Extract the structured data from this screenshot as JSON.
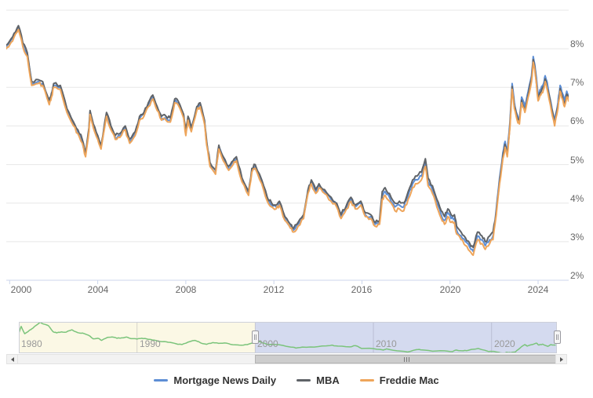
{
  "page": {
    "background": "#ffffff"
  },
  "chart": {
    "y_axis": {
      "labels": [
        "2%",
        "3%",
        "4%",
        "5%",
        "6%",
        "7%",
        "8%"
      ],
      "values": [
        2,
        3,
        4,
        5,
        6,
        7,
        8
      ],
      "top_grid_value": 9
    },
    "x_axis": {
      "labels": [
        "2000",
        "2004",
        "2008",
        "2012",
        "2016",
        "2020",
        "2024"
      ],
      "years": [
        2000,
        2004,
        2008,
        2012,
        2016,
        2020,
        2024
      ]
    },
    "colors": {
      "grid": "#e7e7e7",
      "axis_line": "#ccd6eb",
      "axis_label": "#666666",
      "nav_label": "#999999",
      "nav_mask_unselected": "#fbf8e5",
      "nav_mask_selected": "#d4daef",
      "nav_border": "#cdd0da",
      "scrollbar_track": "#f2f2f2",
      "scrollbar_thumb": "#cdcdcd",
      "legend_text": "#333333"
    }
  },
  "chart_data": {
    "type": "line",
    "title": "",
    "xlabel": "",
    "ylabel": "",
    "ylabel_suffix": "%",
    "xlim": [
      1999.85,
      2025.5
    ],
    "ylim": [
      2,
      9
    ],
    "grid": "horizontal",
    "legend_position": "bottom",
    "x": [
      1999.85,
      2000.0,
      2000.2,
      2000.4,
      2000.6,
      2000.8,
      2001.0,
      2001.3,
      2001.5,
      2001.8,
      2001.9,
      2002.0,
      2002.3,
      2002.6,
      2002.9,
      2003.1,
      2003.3,
      2003.45,
      2003.6,
      2003.65,
      2003.8,
      2004.0,
      2004.15,
      2004.4,
      2004.6,
      2004.8,
      2005.0,
      2005.25,
      2005.45,
      2005.7,
      2005.9,
      2006.1,
      2006.3,
      2006.5,
      2006.7,
      2006.9,
      2007.1,
      2007.3,
      2007.5,
      2007.65,
      2007.9,
      2008.0,
      2008.1,
      2008.25,
      2008.5,
      2008.65,
      2008.85,
      2008.95,
      2009.1,
      2009.35,
      2009.5,
      2009.7,
      2009.95,
      2010.15,
      2010.3,
      2010.55,
      2010.85,
      2011.0,
      2011.15,
      2011.45,
      2011.7,
      2011.9,
      2012.1,
      2012.25,
      2012.5,
      2012.75,
      2012.9,
      2013.1,
      2013.35,
      2013.55,
      2013.7,
      2013.9,
      2014.05,
      2014.3,
      2014.6,
      2014.85,
      2015.05,
      2015.3,
      2015.5,
      2015.7,
      2015.95,
      2016.15,
      2016.4,
      2016.6,
      2016.8,
      2016.92,
      2017.05,
      2017.25,
      2017.5,
      2017.7,
      2017.9,
      2018.1,
      2018.3,
      2018.5,
      2018.7,
      2018.88,
      2019.0,
      2019.2,
      2019.4,
      2019.6,
      2019.75,
      2019.9,
      2020.05,
      2020.2,
      2020.3,
      2020.5,
      2020.7,
      2020.9,
      2021.05,
      2021.25,
      2021.45,
      2021.6,
      2021.8,
      2021.95,
      2022.1,
      2022.25,
      2022.4,
      2022.5,
      2022.6,
      2022.72,
      2022.82,
      2022.92,
      2023.05,
      2023.15,
      2023.25,
      2023.4,
      2023.55,
      2023.7,
      2023.78,
      2023.88,
      2024.0,
      2024.12,
      2024.25,
      2024.32,
      2024.45,
      2024.6,
      2024.75,
      2024.9,
      2025.0,
      2025.1,
      2025.2,
      2025.3,
      2025.42
    ],
    "series": [
      {
        "name": "Mortgage News Daily",
        "color": "#5d8ed5",
        "values": [
          8.05,
          8.15,
          8.35,
          8.55,
          8.1,
          7.85,
          7.1,
          7.15,
          7.1,
          6.6,
          6.8,
          7.05,
          7.0,
          6.4,
          6.05,
          5.85,
          5.6,
          5.25,
          5.9,
          6.35,
          6.0,
          5.7,
          5.45,
          6.3,
          5.95,
          5.7,
          5.75,
          5.95,
          5.6,
          5.8,
          6.2,
          6.3,
          6.55,
          6.75,
          6.45,
          6.2,
          6.2,
          6.15,
          6.65,
          6.6,
          6.25,
          5.8,
          6.2,
          5.9,
          6.45,
          6.55,
          6.1,
          5.55,
          5.0,
          4.8,
          5.45,
          5.15,
          4.9,
          5.05,
          5.15,
          4.6,
          4.25,
          4.85,
          4.95,
          4.55,
          4.1,
          3.95,
          3.9,
          4.0,
          3.6,
          3.4,
          3.3,
          3.45,
          3.65,
          4.3,
          4.55,
          4.3,
          4.45,
          4.3,
          4.1,
          3.95,
          3.65,
          3.9,
          4.1,
          3.9,
          4.0,
          3.7,
          3.65,
          3.45,
          3.5,
          4.2,
          4.3,
          4.15,
          3.9,
          3.95,
          3.9,
          4.2,
          4.5,
          4.6,
          4.7,
          5.05,
          4.55,
          4.35,
          4.0,
          3.7,
          3.55,
          3.75,
          3.6,
          3.6,
          3.3,
          3.15,
          3.0,
          2.85,
          2.75,
          3.15,
          3.05,
          2.9,
          3.05,
          3.15,
          3.85,
          4.65,
          5.3,
          5.6,
          5.35,
          6.1,
          7.1,
          6.6,
          6.3,
          6.2,
          6.75,
          6.5,
          6.9,
          7.3,
          7.8,
          7.45,
          6.8,
          6.95,
          7.1,
          7.3,
          7.0,
          6.55,
          6.15,
          6.6,
          7.05,
          6.85,
          6.65,
          6.9,
          6.8
        ]
      },
      {
        "name": "MBA",
        "color": "#5f6368",
        "values": [
          8.1,
          8.2,
          8.4,
          8.6,
          8.15,
          7.9,
          7.15,
          7.2,
          7.15,
          6.65,
          6.85,
          7.1,
          7.05,
          6.45,
          6.1,
          5.9,
          5.65,
          5.3,
          5.95,
          6.4,
          6.05,
          5.75,
          5.5,
          6.35,
          6.0,
          5.75,
          5.8,
          6.0,
          5.65,
          5.85,
          6.25,
          6.35,
          6.6,
          6.8,
          6.5,
          6.25,
          6.25,
          6.2,
          6.7,
          6.65,
          6.3,
          5.85,
          6.25,
          5.95,
          6.5,
          6.6,
          6.15,
          5.6,
          5.05,
          4.85,
          5.5,
          5.2,
          4.95,
          5.1,
          5.2,
          4.65,
          4.3,
          4.9,
          5.0,
          4.6,
          4.15,
          4.0,
          3.95,
          4.05,
          3.65,
          3.45,
          3.35,
          3.5,
          3.7,
          4.35,
          4.6,
          4.35,
          4.5,
          4.35,
          4.15,
          4.0,
          3.7,
          3.95,
          4.15,
          3.95,
          4.05,
          3.75,
          3.7,
          3.5,
          3.55,
          4.3,
          4.4,
          4.25,
          4.0,
          4.05,
          4.0,
          4.3,
          4.6,
          4.7,
          4.8,
          5.15,
          4.65,
          4.45,
          4.1,
          3.8,
          3.65,
          3.85,
          3.7,
          3.7,
          3.4,
          3.25,
          3.1,
          2.95,
          2.85,
          3.25,
          3.15,
          3.0,
          3.15,
          3.25,
          3.77,
          4.57,
          5.22,
          5.52,
          5.27,
          6.02,
          7.02,
          6.52,
          6.22,
          6.12,
          6.67,
          6.42,
          6.82,
          7.22,
          7.72,
          7.37,
          6.72,
          6.87,
          7.02,
          7.22,
          6.92,
          6.47,
          6.07,
          6.52,
          6.97,
          6.77,
          6.57,
          6.82,
          6.72
        ]
      },
      {
        "name": "Freddie Mac",
        "color": "#eea55b",
        "values": [
          8.0,
          8.1,
          8.3,
          8.5,
          8.05,
          7.8,
          7.05,
          7.1,
          7.05,
          6.55,
          6.75,
          7.0,
          6.95,
          6.35,
          6.0,
          5.8,
          5.55,
          5.2,
          5.85,
          6.3,
          5.95,
          5.65,
          5.4,
          6.25,
          5.9,
          5.65,
          5.7,
          5.9,
          5.55,
          5.75,
          6.15,
          6.25,
          6.5,
          6.7,
          6.4,
          6.15,
          6.15,
          6.1,
          6.6,
          6.55,
          6.2,
          5.75,
          6.15,
          5.85,
          6.4,
          6.5,
          6.05,
          5.5,
          4.95,
          4.75,
          5.4,
          5.1,
          4.85,
          5.0,
          5.1,
          4.55,
          4.2,
          4.8,
          4.9,
          4.5,
          4.05,
          3.9,
          3.85,
          3.95,
          3.55,
          3.35,
          3.25,
          3.4,
          3.6,
          4.25,
          4.5,
          4.25,
          4.4,
          4.25,
          4.05,
          3.9,
          3.6,
          3.85,
          4.05,
          3.85,
          3.95,
          3.65,
          3.6,
          3.4,
          3.45,
          4.1,
          4.2,
          4.05,
          3.8,
          3.85,
          3.8,
          4.1,
          4.4,
          4.5,
          4.6,
          4.95,
          4.45,
          4.25,
          3.9,
          3.6,
          3.45,
          3.65,
          3.5,
          3.5,
          3.2,
          3.05,
          2.9,
          2.75,
          2.65,
          3.05,
          2.95,
          2.8,
          2.95,
          3.05,
          3.7,
          4.5,
          5.15,
          5.45,
          5.2,
          5.95,
          6.95,
          6.45,
          6.15,
          6.05,
          6.6,
          6.35,
          6.75,
          7.15,
          7.65,
          7.3,
          6.65,
          6.8,
          6.95,
          7.15,
          6.85,
          6.4,
          6.0,
          6.45,
          6.9,
          6.7,
          6.5,
          6.75,
          6.65
        ]
      }
    ],
    "navigator": {
      "type": "line",
      "color": "#7bc47b",
      "labels": [
        "1980",
        "1990",
        "2000",
        "2010",
        "2020"
      ],
      "tick_years": [
        1980,
        1990,
        2000,
        2010,
        2020
      ],
      "xlim": [
        1980,
        2025.5
      ],
      "ylim": [
        2.65,
        18.63
      ],
      "selected_range": [
        2000,
        2025.5
      ],
      "points": [
        [
          1980.0,
          12.9
        ],
        [
          1980.2,
          16.3
        ],
        [
          1980.5,
          12.6
        ],
        [
          1980.8,
          13.8
        ],
        [
          1981.1,
          15.1
        ],
        [
          1981.4,
          16.6
        ],
        [
          1981.8,
          18.5
        ],
        [
          1982.1,
          17.5
        ],
        [
          1982.5,
          16.7
        ],
        [
          1982.9,
          13.6
        ],
        [
          1983.2,
          13.0
        ],
        [
          1983.6,
          13.5
        ],
        [
          1984.0,
          13.4
        ],
        [
          1984.5,
          14.6
        ],
        [
          1985.0,
          13.1
        ],
        [
          1985.4,
          12.9
        ],
        [
          1985.9,
          11.8
        ],
        [
          1986.3,
          10.0
        ],
        [
          1986.7,
          10.3
        ],
        [
          1987.0,
          9.2
        ],
        [
          1987.5,
          10.7
        ],
        [
          1987.9,
          10.9
        ],
        [
          1988.3,
          10.3
        ],
        [
          1988.7,
          10.5
        ],
        [
          1989.1,
          10.9
        ],
        [
          1989.5,
          10.1
        ],
        [
          1990.0,
          9.9
        ],
        [
          1990.4,
          10.3
        ],
        [
          1990.8,
          10.0
        ],
        [
          1991.3,
          9.4
        ],
        [
          1991.8,
          8.7
        ],
        [
          1992.3,
          8.6
        ],
        [
          1992.8,
          8.2
        ],
        [
          1993.3,
          7.5
        ],
        [
          1993.8,
          7.1
        ],
        [
          1994.3,
          8.3
        ],
        [
          1994.9,
          9.2
        ],
        [
          1995.4,
          7.9
        ],
        [
          1995.9,
          7.2
        ],
        [
          1996.4,
          8.1
        ],
        [
          1996.9,
          7.7
        ],
        [
          1997.4,
          7.9
        ],
        [
          1997.9,
          7.2
        ],
        [
          1998.5,
          6.9
        ],
        [
          1999.0,
          6.8
        ],
        [
          1999.5,
          7.4
        ],
        [
          2000.0,
          8.2
        ],
        [
          2000.4,
          8.6
        ],
        [
          2001.0,
          7.1
        ],
        [
          2002.0,
          7.0
        ],
        [
          2003.0,
          5.8
        ],
        [
          2003.45,
          5.3
        ],
        [
          2004.0,
          5.8
        ],
        [
          2005.0,
          5.8
        ],
        [
          2006.0,
          6.4
        ],
        [
          2006.5,
          6.8
        ],
        [
          2007.0,
          6.3
        ],
        [
          2008.0,
          5.9
        ],
        [
          2008.5,
          6.5
        ],
        [
          2009.0,
          5.1
        ],
        [
          2010.0,
          5.0
        ],
        [
          2010.85,
          4.3
        ],
        [
          2011.1,
          4.9
        ],
        [
          2012.0,
          3.9
        ],
        [
          2012.9,
          3.3
        ],
        [
          2013.65,
          4.5
        ],
        [
          2014.0,
          4.4
        ],
        [
          2015.0,
          3.7
        ],
        [
          2016.0,
          3.9
        ],
        [
          2016.7,
          3.5
        ],
        [
          2017.0,
          4.3
        ],
        [
          2017.6,
          3.9
        ],
        [
          2018.0,
          4.1
        ],
        [
          2018.88,
          5.1
        ],
        [
          2019.7,
          3.6
        ],
        [
          2020.0,
          3.6
        ],
        [
          2020.6,
          3.1
        ],
        [
          2021.05,
          2.75
        ],
        [
          2021.3,
          3.15
        ],
        [
          2021.6,
          2.9
        ],
        [
          2022.0,
          3.3
        ],
        [
          2022.4,
          5.3
        ],
        [
          2022.82,
          7.1
        ],
        [
          2023.0,
          6.3
        ],
        [
          2023.78,
          7.8
        ],
        [
          2024.0,
          6.8
        ],
        [
          2024.32,
          7.3
        ],
        [
          2024.75,
          6.15
        ],
        [
          2025.0,
          7.05
        ],
        [
          2025.42,
          6.8
        ]
      ]
    }
  }
}
